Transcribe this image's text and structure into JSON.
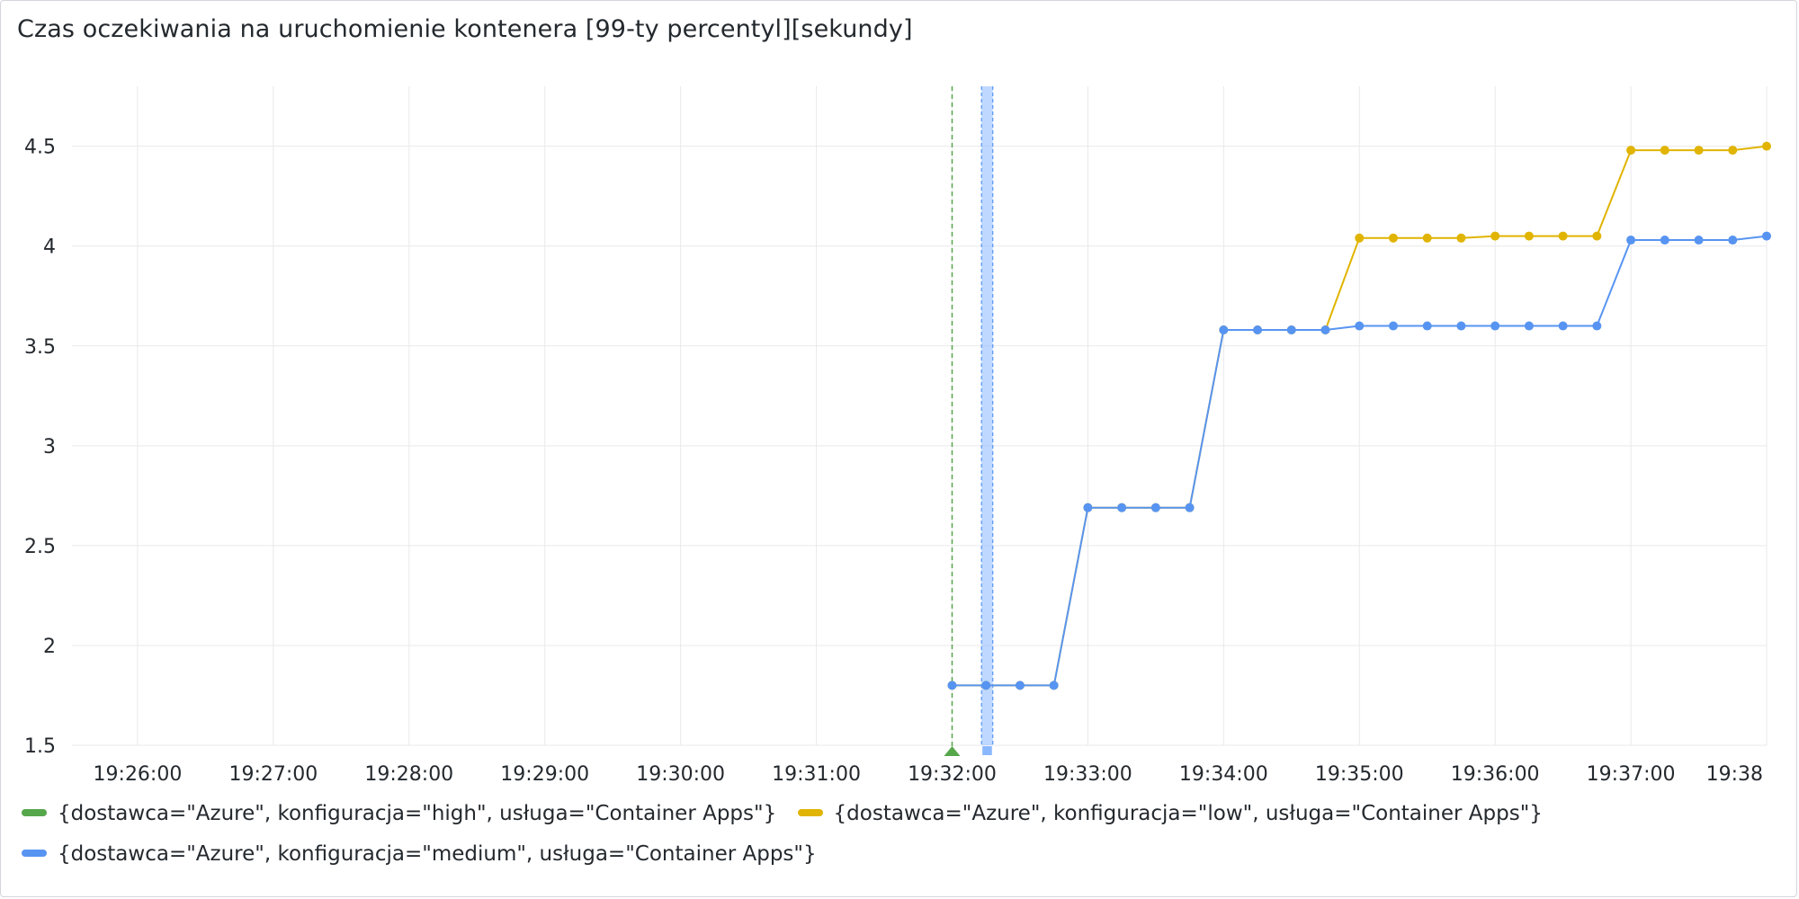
{
  "panel": {
    "title": "Czas oczekiwania na uruchomienie kontenera [99-ty percentyl][sekundy]"
  },
  "chart_data": {
    "type": "line",
    "title": "Czas oczekiwania na uruchomienie kontenera [99-ty percentyl][sekundy]",
    "xlabel": "",
    "ylabel": "",
    "ylim": [
      1.5,
      4.8
    ],
    "xlim": [
      "19:25:31",
      "19:38:00"
    ],
    "x_ticks": [
      "19:26:00",
      "19:27:00",
      "19:28:00",
      "19:29:00",
      "19:30:00",
      "19:31:00",
      "19:32:00",
      "19:33:00",
      "19:34:00",
      "19:35:00",
      "19:36:00",
      "19:37:00",
      "19:38"
    ],
    "x_tick_times": [
      "19:26:00",
      "19:27:00",
      "19:28:00",
      "19:29:00",
      "19:30:00",
      "19:31:00",
      "19:32:00",
      "19:33:00",
      "19:34:00",
      "19:35:00",
      "19:36:00",
      "19:37:00",
      "19:38:00"
    ],
    "y_ticks": [
      "1.5",
      "2",
      "2.5",
      "3",
      "3.5",
      "4",
      "4.5"
    ],
    "y_tick_values": [
      1.5,
      2,
      2.5,
      3,
      3.5,
      4,
      4.5
    ],
    "grid": true,
    "legend_placement": "bottom",
    "series": [
      {
        "name": "{dostawca=\"Azure\", konfiguracja=\"high\", usługa=\"Container Apps\"}",
        "color": "#56a64b",
        "points": []
      },
      {
        "name": "{dostawca=\"Azure\", konfiguracja=\"low\", usługa=\"Container Apps\"}",
        "color": "#e0b400",
        "points": [
          {
            "x": "19:32:00",
            "y": 1.8
          },
          {
            "x": "19:32:15",
            "y": 1.8
          },
          {
            "x": "19:32:30",
            "y": 1.8
          },
          {
            "x": "19:32:45",
            "y": 1.8
          },
          {
            "x": "19:33:00",
            "y": 2.69
          },
          {
            "x": "19:33:15",
            "y": 2.69
          },
          {
            "x": "19:33:30",
            "y": 2.69
          },
          {
            "x": "19:33:45",
            "y": 2.69
          },
          {
            "x": "19:34:00",
            "y": 3.58
          },
          {
            "x": "19:34:15",
            "y": 3.58
          },
          {
            "x": "19:34:30",
            "y": 3.58
          },
          {
            "x": "19:34:45",
            "y": 3.58
          },
          {
            "x": "19:35:00",
            "y": 4.04
          },
          {
            "x": "19:35:15",
            "y": 4.04
          },
          {
            "x": "19:35:30",
            "y": 4.04
          },
          {
            "x": "19:35:45",
            "y": 4.04
          },
          {
            "x": "19:36:00",
            "y": 4.05
          },
          {
            "x": "19:36:15",
            "y": 4.05
          },
          {
            "x": "19:36:30",
            "y": 4.05
          },
          {
            "x": "19:36:45",
            "y": 4.05
          },
          {
            "x": "19:37:00",
            "y": 4.48
          },
          {
            "x": "19:37:15",
            "y": 4.48
          },
          {
            "x": "19:37:30",
            "y": 4.48
          },
          {
            "x": "19:37:45",
            "y": 4.48
          },
          {
            "x": "19:38:00",
            "y": 4.5
          }
        ]
      },
      {
        "name": "{dostawca=\"Azure\", konfiguracja=\"medium\", usługa=\"Container Apps\"}",
        "color": "#5794f2",
        "points": [
          {
            "x": "19:32:00",
            "y": 1.8
          },
          {
            "x": "19:32:15",
            "y": 1.8
          },
          {
            "x": "19:32:30",
            "y": 1.8
          },
          {
            "x": "19:32:45",
            "y": 1.8
          },
          {
            "x": "19:33:00",
            "y": 2.69
          },
          {
            "x": "19:33:15",
            "y": 2.69
          },
          {
            "x": "19:33:30",
            "y": 2.69
          },
          {
            "x": "19:33:45",
            "y": 2.69
          },
          {
            "x": "19:34:00",
            "y": 3.58
          },
          {
            "x": "19:34:15",
            "y": 3.58
          },
          {
            "x": "19:34:30",
            "y": 3.58
          },
          {
            "x": "19:34:45",
            "y": 3.58
          },
          {
            "x": "19:35:00",
            "y": 3.6
          },
          {
            "x": "19:35:15",
            "y": 3.6
          },
          {
            "x": "19:35:30",
            "y": 3.6
          },
          {
            "x": "19:35:45",
            "y": 3.6
          },
          {
            "x": "19:36:00",
            "y": 3.6
          },
          {
            "x": "19:36:15",
            "y": 3.6
          },
          {
            "x": "19:36:30",
            "y": 3.6
          },
          {
            "x": "19:36:45",
            "y": 3.6
          },
          {
            "x": "19:37:00",
            "y": 4.03
          },
          {
            "x": "19:37:15",
            "y": 4.03
          },
          {
            "x": "19:37:30",
            "y": 4.03
          },
          {
            "x": "19:37:45",
            "y": 4.03
          },
          {
            "x": "19:38:00",
            "y": 4.05
          }
        ]
      }
    ],
    "annotations": [
      {
        "kind": "point",
        "time": "19:32:00",
        "color": "#56a64b"
      },
      {
        "kind": "region",
        "from": "19:32:13",
        "to": "19:32:18",
        "color": "#8ab8ff"
      }
    ]
  }
}
